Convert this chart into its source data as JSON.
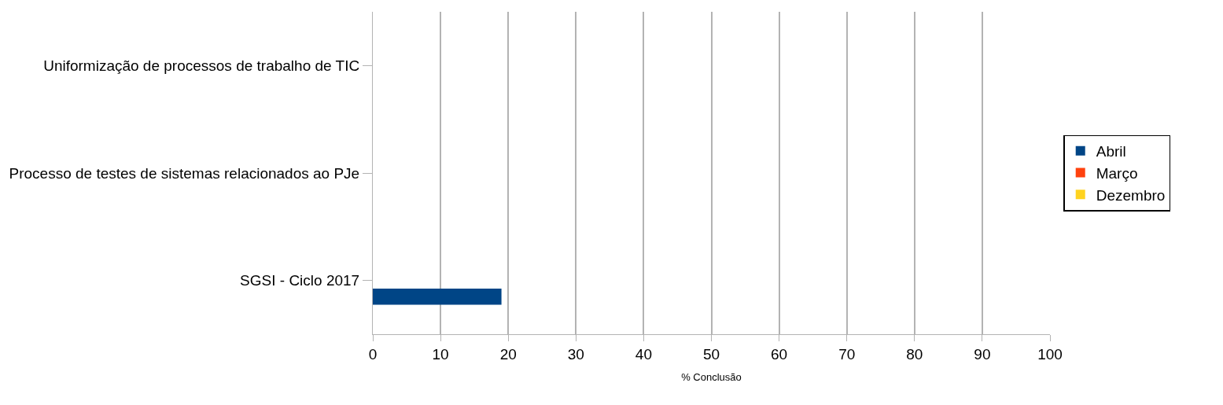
{
  "chart_data": {
    "type": "bar",
    "orientation": "horizontal",
    "categories": [
      "Uniformização de processos de trabalho de TIC",
      "Processo de testes de sistemas relacionados ao PJe",
      "SGSI - Ciclo 2017"
    ],
    "series": [
      {
        "name": "Abril",
        "color": "#004586",
        "values": [
          null,
          null,
          19
        ]
      },
      {
        "name": "Março",
        "color": "#ff420e",
        "values": [
          null,
          null,
          null
        ]
      },
      {
        "name": "Dezembro",
        "color": "#ffd320",
        "values": [
          null,
          null,
          null
        ]
      }
    ],
    "xlabel": "% Conclusão",
    "xlim": [
      0,
      100
    ],
    "xticks": [
      0,
      10,
      20,
      30,
      40,
      50,
      60,
      70,
      80,
      90,
      100
    ],
    "grid": "x",
    "legend": "right"
  }
}
